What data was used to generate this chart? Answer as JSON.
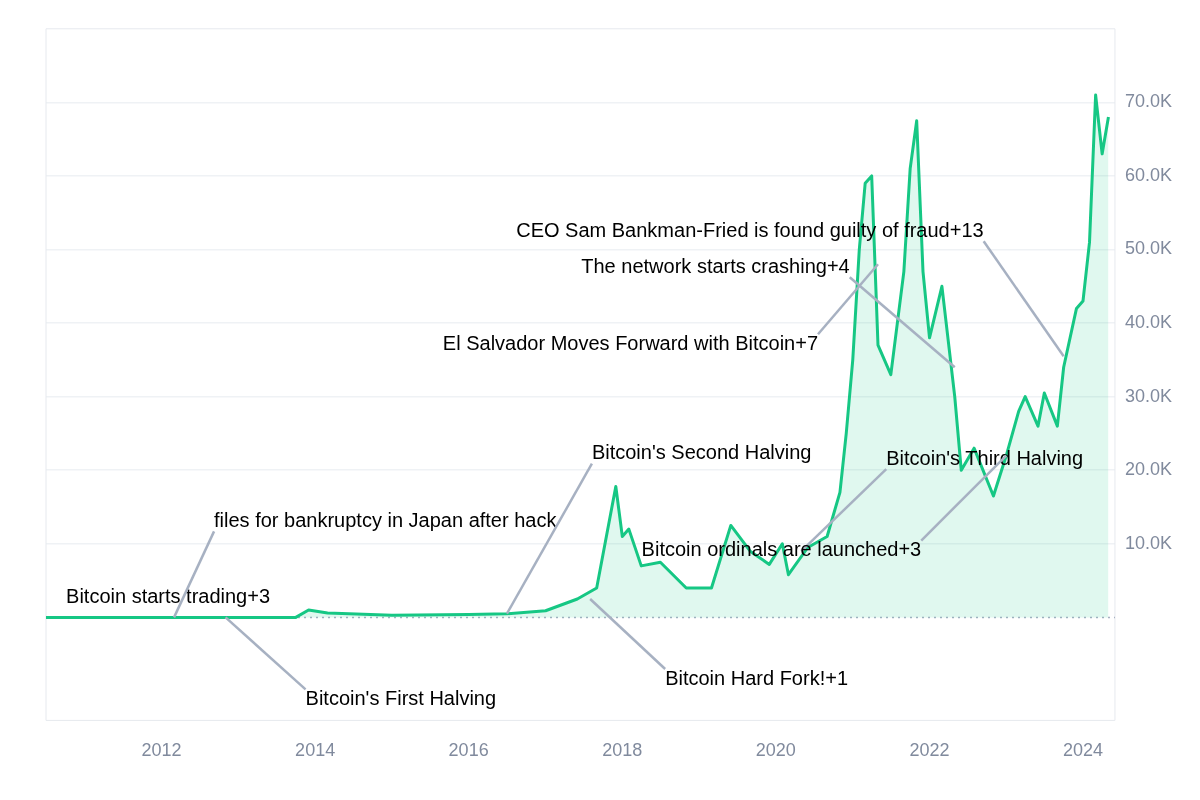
{
  "chart_data": {
    "type": "area",
    "x": [
      "2010-07",
      "2013-01",
      "2013-10",
      "2013-12",
      "2014-03",
      "2015-01",
      "2016-01",
      "2016-07",
      "2017-01",
      "2017-06",
      "2017-09",
      "2017-12",
      "2018-01",
      "2018-02",
      "2018-04",
      "2018-07",
      "2018-11",
      "2019-03",
      "2019-06",
      "2019-09",
      "2019-12",
      "2020-02",
      "2020-03",
      "2020-06",
      "2020-09",
      "2020-11",
      "2020-12",
      "2021-01",
      "2021-02",
      "2021-03",
      "2021-04",
      "2021-05",
      "2021-07",
      "2021-09",
      "2021-10",
      "2021-11",
      "2021-12",
      "2022-01",
      "2022-03",
      "2022-05",
      "2022-06",
      "2022-08",
      "2022-11",
      "2023-01",
      "2023-03",
      "2023-04",
      "2023-06",
      "2023-07",
      "2023-09",
      "2023-10",
      "2023-12",
      "2024-01",
      "2024-02",
      "2024-03",
      "2024-04",
      "2024-05"
    ],
    "series": [
      {
        "color": "#16c784",
        "values": [
          0,
          0,
          0,
          1000,
          600,
          300,
          400,
          500,
          900,
          2500,
          4000,
          17800,
          11000,
          12000,
          7000,
          7500,
          4000,
          4000,
          12500,
          9000,
          7200,
          10000,
          5800,
          9500,
          11000,
          17000,
          25000,
          35000,
          50000,
          59000,
          60000,
          37000,
          33000,
          47000,
          61000,
          67500,
          47000,
          38000,
          45000,
          30000,
          20000,
          23000,
          16500,
          22000,
          28000,
          30000,
          26000,
          30500,
          26000,
          34000,
          42000,
          43000,
          51000,
          71000,
          63000,
          68000
        ]
      }
    ],
    "xlim": [
      "2010-07",
      "2024-06"
    ],
    "xticks": [
      "2012",
      "2014",
      "2016",
      "2018",
      "2020",
      "2022",
      "2024"
    ],
    "ylim": [
      -14000,
      80000
    ],
    "yticks": [
      {
        "value": 10000,
        "label": "10.0K"
      },
      {
        "value": 20000,
        "label": "20.0K"
      },
      {
        "value": 30000,
        "label": "30.0K"
      },
      {
        "value": 40000,
        "label": "40.0K"
      },
      {
        "value": 50000,
        "label": "50.0K"
      },
      {
        "value": 60000,
        "label": "60.0K"
      },
      {
        "value": 70000,
        "label": "70.0K"
      }
    ],
    "grid": "y",
    "legend": false,
    "marker": "none",
    "line_style": "solid",
    "ref_lines": [
      {
        "axis": "y",
        "value": 0,
        "label": null,
        "color": "#a7b1c2",
        "line_style": "dotted"
      }
    ],
    "annotations": [
      {
        "text": "Bitcoin starts trading+3",
        "x": "2012-03",
        "y": 0
      },
      {
        "text": "files for bankruptcy in Japan after hack",
        "x": "2012-03",
        "y": 0
      },
      {
        "text": "Bitcoin's First Halving",
        "x": "2012-11",
        "y": 0
      },
      {
        "text": "Bitcoin's Second Halving",
        "x": "2016-07",
        "y": 500
      },
      {
        "text": "Bitcoin Hard Fork!+1",
        "x": "2017-08",
        "y": 2500
      },
      {
        "text": "Bitcoin's Third Halving",
        "x": "2020-05",
        "y": 9000
      },
      {
        "text": "Bitcoin ordinals are launched+3",
        "x": "2023-01",
        "y": 22000
      },
      {
        "text": "El Salvador Moves Forward with Bitcoin+7",
        "x": "2021-05",
        "y": 48000
      },
      {
        "text": "The network starts crashing+4",
        "x": "2022-05",
        "y": 34000
      },
      {
        "text": "CEO Sam Bankman-Fried is found guilty of fraud+13",
        "x": "2023-10",
        "y": 35500
      }
    ]
  }
}
